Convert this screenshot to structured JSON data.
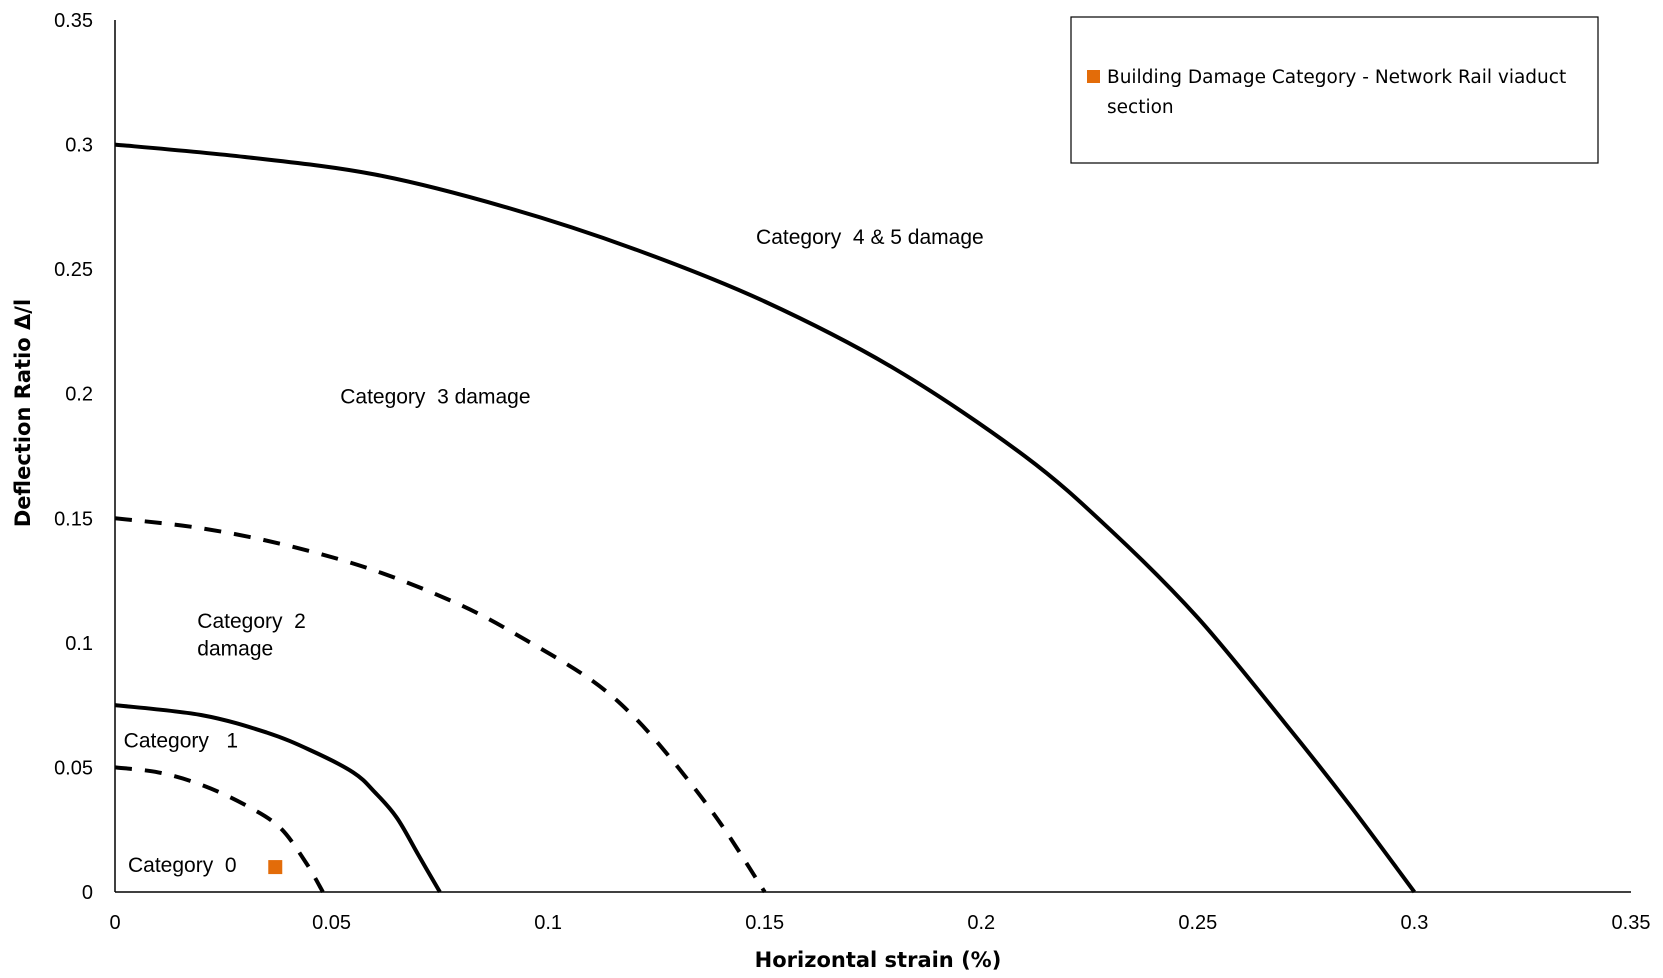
{
  "chart_data": {
    "type": "line",
    "title": "",
    "xlabel": "Horizontal strain (%)",
    "ylabel": "Deflection Ratio  Δ/l",
    "xlim": [
      0,
      0.35
    ],
    "ylim": [
      0,
      0.35
    ],
    "x_ticks": [
      "0",
      "0.05",
      "0.1",
      "0.15",
      "0.2",
      "0.25",
      "0.3",
      "0.35"
    ],
    "y_ticks": [
      "0",
      "0.05",
      "0.1",
      "0.15",
      "0.2",
      "0.25",
      "0.3",
      "0.35"
    ],
    "grid": false,
    "legend_position": "top-right",
    "colors": {
      "curve": "#000000",
      "point": "#E36C09"
    },
    "series": [
      {
        "style": "dashed",
        "x": [
          0,
          0.01,
          0.02,
          0.03,
          0.038,
          0.044,
          0.048
        ],
        "y": [
          0.05,
          0.048,
          0.043,
          0.035,
          0.026,
          0.012,
          0
        ]
      },
      {
        "style": "solid",
        "x": [
          0,
          0.02,
          0.035,
          0.045,
          0.055,
          0.06,
          0.065,
          0.07,
          0.075
        ],
        "y": [
          0.075,
          0.071,
          0.064,
          0.057,
          0.048,
          0.04,
          0.03,
          0.015,
          0
        ]
      },
      {
        "style": "dashed",
        "x": [
          0,
          0.02,
          0.04,
          0.06,
          0.08,
          0.095,
          0.11,
          0.12,
          0.13,
          0.14,
          0.15
        ],
        "y": [
          0.15,
          0.146,
          0.139,
          0.129,
          0.115,
          0.101,
          0.085,
          0.07,
          0.05,
          0.027,
          0
        ]
      },
      {
        "style": "solid",
        "x": [
          0,
          0.03,
          0.06,
          0.09,
          0.12,
          0.15,
          0.18,
          0.21,
          0.23,
          0.25,
          0.27,
          0.285,
          0.3
        ],
        "y": [
          0.3,
          0.295,
          0.288,
          0.275,
          0.258,
          0.237,
          0.21,
          0.175,
          0.145,
          0.11,
          0.068,
          0.035,
          0
        ]
      },
      {
        "name": "Building Damage Category - Network Rail viaduct section",
        "type": "scatter",
        "marker": "square",
        "x": [
          0.037
        ],
        "y": [
          0.01
        ]
      }
    ],
    "annotations": [
      {
        "text": "Category  0",
        "x": 0.003,
        "y": 0.008
      },
      {
        "text": "Category   1",
        "x": 0.002,
        "y": 0.058
      },
      {
        "text": "Category  2",
        "x": 0.019,
        "y": 0.106
      },
      {
        "text": "damage",
        "x": 0.019,
        "y": 0.095
      },
      {
        "text": "Category  3 damage",
        "x": 0.052,
        "y": 0.196
      },
      {
        "text": "Category  4 & 5 damage",
        "x": 0.148,
        "y": 0.26
      }
    ],
    "legend": {
      "line1": "Building Damage Category - Network Rail viaduct",
      "line2": "section"
    }
  }
}
